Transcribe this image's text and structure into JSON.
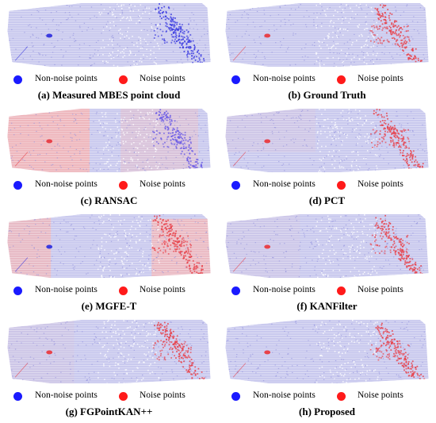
{
  "legend": {
    "non_noise_label": "Non-noise points",
    "noise_label": "Noise points",
    "non_noise_color": "#1a1aff",
    "noise_color": "#ff1a1a"
  },
  "colors": {
    "cloud_base": "#c9c9ee",
    "cloud_speckle": "#8e8edc",
    "noise_light": "#f4b4b4",
    "noise_strong": "#e8424a",
    "non_noise_strong": "#3a3ae0"
  },
  "panels": [
    {
      "id": "a",
      "caption": "(a) Measured MBES point cloud",
      "variant": "measured"
    },
    {
      "id": "b",
      "caption": "(b) Ground Truth",
      "variant": "ground-truth"
    },
    {
      "id": "c",
      "caption": "(c) RANSAC",
      "variant": "ransac"
    },
    {
      "id": "d",
      "caption": "(d) PCT",
      "variant": "pct"
    },
    {
      "id": "e",
      "caption": "(e) MGFE-T",
      "variant": "mgfe-t"
    },
    {
      "id": "f",
      "caption": "(f) KANFilter",
      "variant": "kanfilter"
    },
    {
      "id": "g",
      "caption": "(g) FGPointKAN++",
      "variant": "fgpointkan"
    },
    {
      "id": "h",
      "caption": "(h) Proposed",
      "variant": "proposed"
    }
  ]
}
